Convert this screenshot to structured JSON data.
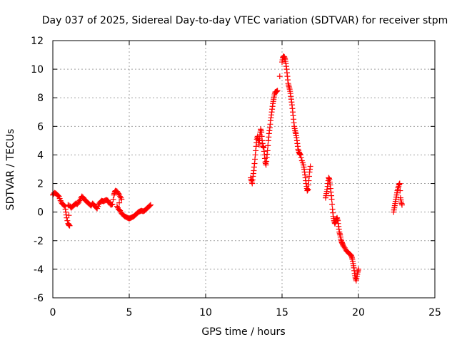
{
  "chart_data": {
    "type": "scatter",
    "title": "Day 037 of 2025, Sidereal Day-to-day VTEC variation (SDTVAR) for receiver stpm",
    "xlabel": "GPS time / hours",
    "ylabel": "SDTVAR / TECUs",
    "xlim": [
      0,
      25
    ],
    "ylim": [
      -6,
      12
    ],
    "xticks": [
      0,
      5,
      10,
      15,
      20,
      25
    ],
    "yticks": [
      -6,
      -4,
      -2,
      0,
      2,
      4,
      6,
      8,
      10,
      12
    ],
    "grid": true,
    "marker": "plus",
    "color": "#ff0000",
    "series": [
      {
        "name": "SDTVAR",
        "segments": [
          [
            [
              0.0,
              1.2
            ],
            [
              0.1,
              1.35
            ],
            [
              0.2,
              1.3
            ],
            [
              0.3,
              1.2
            ],
            [
              0.4,
              1.1
            ],
            [
              0.5,
              0.8
            ],
            [
              0.6,
              0.6
            ],
            [
              0.7,
              0.5
            ],
            [
              0.8,
              0.4
            ],
            [
              0.85,
              0.0
            ],
            [
              0.9,
              -0.4
            ],
            [
              1.0,
              -0.8
            ],
            [
              1.05,
              -0.9
            ],
            [
              1.1,
              -0.95
            ],
            [
              1.0,
              0.5
            ],
            [
              1.15,
              0.4
            ],
            [
              1.2,
              0.3
            ],
            [
              1.3,
              0.4
            ],
            [
              1.4,
              0.5
            ],
            [
              1.5,
              0.6
            ],
            [
              1.6,
              0.55
            ],
            [
              1.7,
              0.7
            ],
            [
              1.8,
              0.9
            ],
            [
              1.9,
              1.1
            ],
            [
              2.0,
              1.0
            ],
            [
              2.1,
              0.85
            ],
            [
              2.2,
              0.75
            ],
            [
              2.3,
              0.65
            ],
            [
              2.4,
              0.55
            ],
            [
              2.5,
              0.45
            ],
            [
              2.6,
              0.6
            ],
            [
              2.7,
              0.5
            ],
            [
              2.8,
              0.35
            ],
            [
              2.9,
              0.25
            ],
            [
              3.0,
              0.55
            ],
            [
              3.1,
              0.7
            ],
            [
              3.2,
              0.8
            ],
            [
              3.3,
              0.75
            ],
            [
              3.4,
              0.8
            ],
            [
              3.5,
              0.85
            ],
            [
              3.6,
              0.8
            ],
            [
              3.7,
              0.65
            ],
            [
              3.8,
              0.5
            ],
            [
              3.9,
              0.55
            ],
            [
              4.0,
              1.2
            ],
            [
              4.05,
              1.4
            ],
            [
              4.1,
              1.5
            ],
            [
              4.2,
              1.45
            ],
            [
              4.3,
              1.3
            ],
            [
              4.4,
              1.1
            ],
            [
              4.5,
              0.9
            ],
            [
              4.2,
              0.4
            ],
            [
              4.3,
              0.2
            ],
            [
              4.4,
              0.1
            ],
            [
              4.5,
              -0.1
            ],
            [
              4.6,
              -0.2
            ],
            [
              4.7,
              -0.3
            ],
            [
              4.8,
              -0.35
            ],
            [
              4.9,
              -0.4
            ],
            [
              5.0,
              -0.45
            ],
            [
              5.1,
              -0.4
            ],
            [
              5.2,
              -0.35
            ],
            [
              5.3,
              -0.3
            ],
            [
              5.4,
              -0.2
            ],
            [
              5.5,
              -0.1
            ],
            [
              5.6,
              0.0
            ],
            [
              5.7,
              0.05
            ],
            [
              5.8,
              0.1
            ],
            [
              5.9,
              0.05
            ],
            [
              6.0,
              0.1
            ],
            [
              6.1,
              0.2
            ],
            [
              6.2,
              0.3
            ],
            [
              6.3,
              0.4
            ],
            [
              6.4,
              0.5
            ]
          ],
          [
            [
              12.95,
              2.4
            ],
            [
              13.0,
              2.2
            ],
            [
              13.05,
              2.0
            ],
            [
              13.1,
              2.5
            ],
            [
              13.15,
              2.9
            ],
            [
              13.2,
              3.4
            ],
            [
              13.25,
              4.0
            ],
            [
              13.3,
              4.6
            ],
            [
              13.35,
              5.1
            ],
            [
              13.4,
              5.3
            ],
            [
              13.45,
              5.0
            ],
            [
              13.5,
              4.7
            ],
            [
              13.55,
              5.4
            ],
            [
              13.6,
              5.8
            ],
            [
              13.65,
              5.6
            ],
            [
              13.7,
              5.0
            ],
            [
              13.75,
              4.6
            ],
            [
              13.8,
              4.5
            ],
            [
              13.85,
              4.0
            ],
            [
              13.9,
              3.5
            ],
            [
              13.95,
              3.3
            ],
            [
              14.0,
              3.8
            ],
            [
              14.05,
              4.3
            ],
            [
              14.1,
              5.0
            ],
            [
              14.15,
              5.5
            ],
            [
              14.2,
              5.9
            ],
            [
              14.25,
              6.4
            ],
            [
              14.3,
              6.8
            ],
            [
              14.35,
              7.2
            ],
            [
              14.4,
              7.6
            ],
            [
              14.45,
              7.9
            ],
            [
              14.5,
              8.2
            ],
            [
              14.55,
              8.4
            ],
            [
              14.6,
              8.4
            ],
            [
              14.65,
              8.45
            ],
            [
              14.7,
              8.5
            ],
            [
              15.0,
              10.5
            ],
            [
              15.05,
              10.8
            ],
            [
              15.1,
              10.9
            ],
            [
              15.15,
              10.85
            ],
            [
              15.2,
              10.7
            ],
            [
              15.25,
              10.4
            ],
            [
              15.3,
              10.0
            ],
            [
              15.35,
              9.5
            ],
            [
              15.4,
              9.0
            ],
            [
              15.45,
              8.8
            ],
            [
              15.5,
              8.6
            ],
            [
              15.55,
              8.3
            ],
            [
              15.6,
              7.9
            ],
            [
              15.65,
              7.5
            ],
            [
              15.7,
              7.0
            ],
            [
              15.75,
              6.5
            ],
            [
              15.8,
              6.0
            ],
            [
              15.85,
              5.7
            ],
            [
              15.9,
              5.5
            ],
            [
              15.95,
              5.2
            ],
            [
              16.0,
              4.8
            ],
            [
              16.05,
              4.4
            ],
            [
              16.1,
              4.2
            ],
            [
              16.15,
              4.1
            ],
            [
              16.2,
              4.0
            ],
            [
              16.3,
              3.6
            ],
            [
              16.4,
              3.3
            ],
            [
              16.45,
              3.0
            ],
            [
              16.5,
              2.6
            ],
            [
              16.55,
              2.2
            ],
            [
              16.6,
              1.8
            ],
            [
              16.65,
              1.5
            ],
            [
              16.7,
              1.6
            ],
            [
              16.75,
              2.2
            ],
            [
              16.8,
              2.8
            ],
            [
              16.85,
              3.2
            ]
          ],
          [
            [
              17.85,
              1.0
            ],
            [
              17.9,
              1.3
            ],
            [
              17.95,
              1.6
            ],
            [
              18.0,
              2.0
            ],
            [
              18.05,
              2.4
            ],
            [
              18.1,
              2.3
            ],
            [
              18.15,
              1.9
            ],
            [
              18.2,
              1.4
            ],
            [
              18.25,
              0.9
            ],
            [
              18.3,
              0.2
            ],
            [
              18.35,
              -0.3
            ],
            [
              18.4,
              -0.6
            ],
            [
              18.45,
              -0.8
            ],
            [
              18.5,
              -0.7
            ],
            [
              18.55,
              -0.5
            ],
            [
              18.6,
              -0.4
            ],
            [
              18.65,
              -0.6
            ],
            [
              18.7,
              -1.0
            ],
            [
              18.75,
              -1.4
            ],
            [
              18.8,
              -1.6
            ],
            [
              18.85,
              -1.9
            ],
            [
              18.9,
              -2.1
            ],
            [
              18.95,
              -2.2
            ],
            [
              19.0,
              -2.35
            ],
            [
              19.1,
              -2.5
            ],
            [
              19.2,
              -2.7
            ],
            [
              19.3,
              -2.8
            ],
            [
              19.4,
              -2.9
            ],
            [
              19.5,
              -3.0
            ],
            [
              19.55,
              -3.1
            ],
            [
              19.6,
              -3.3
            ],
            [
              19.65,
              -3.6
            ],
            [
              19.7,
              -3.9
            ],
            [
              19.75,
              -4.3
            ],
            [
              19.8,
              -4.6
            ],
            [
              19.85,
              -4.8
            ],
            [
              19.9,
              -4.5
            ],
            [
              19.95,
              -4.2
            ],
            [
              20.0,
              -4.0
            ]
          ],
          [
            [
              22.3,
              0.0
            ],
            [
              22.35,
              0.3
            ],
            [
              22.4,
              0.6
            ],
            [
              22.45,
              0.9
            ],
            [
              22.5,
              1.2
            ],
            [
              22.55,
              1.5
            ],
            [
              22.6,
              1.7
            ],
            [
              22.65,
              1.9
            ],
            [
              22.7,
              2.0
            ],
            [
              22.75,
              1.0
            ],
            [
              22.8,
              0.7
            ],
            [
              22.85,
              0.5
            ]
          ]
        ]
      }
    ]
  }
}
